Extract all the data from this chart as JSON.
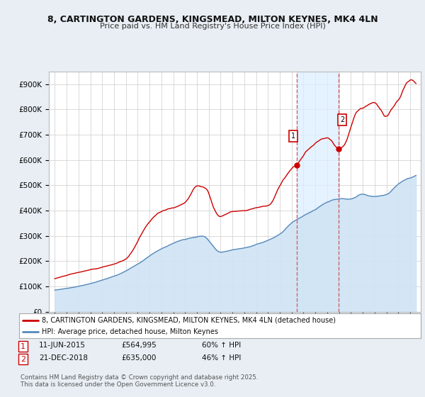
{
  "title": "8, CARTINGTON GARDENS, KINGSMEAD, MILTON KEYNES, MK4 4LN",
  "subtitle": "Price paid vs. HM Land Registry's House Price Index (HPI)",
  "ylim": [
    0,
    950000
  ],
  "yticks": [
    0,
    100000,
    200000,
    300000,
    400000,
    500000,
    600000,
    700000,
    800000,
    900000
  ],
  "ytick_labels": [
    "£0",
    "£100K",
    "£200K",
    "£300K",
    "£400K",
    "£500K",
    "£600K",
    "£700K",
    "£800K",
    "£900K"
  ],
  "red_line_color": "#cc0000",
  "blue_line_color": "#5588bb",
  "blue_fill_color": "#d0e4f4",
  "vertical_line_color": "#cc6666",
  "vertical_fill_color": "#ddeeff",
  "background_color": "#e8eef4",
  "plot_bg_color": "#ffffff",
  "legend_label_red": "8, CARTINGTON GARDENS, KINGSMEAD, MILTON KEYNES, MK4 4LN (detached house)",
  "legend_label_blue": "HPI: Average price, detached house, Milton Keynes",
  "annotation1_num": "1",
  "annotation1_date": "11-JUN-2015",
  "annotation1_price": "£564,995",
  "annotation1_hpi": "60% ↑ HPI",
  "annotation1_year": 2015.44,
  "annotation1_price_val": 564995,
  "annotation2_num": "2",
  "annotation2_date": "21-DEC-2018",
  "annotation2_price": "£635,000",
  "annotation2_hpi": "46% ↑ HPI",
  "annotation2_year": 2018.97,
  "annotation2_price_val": 635000,
  "footnote": "Contains HM Land Registry data © Crown copyright and database right 2025.\nThis data is licensed under the Open Government Licence v3.0."
}
